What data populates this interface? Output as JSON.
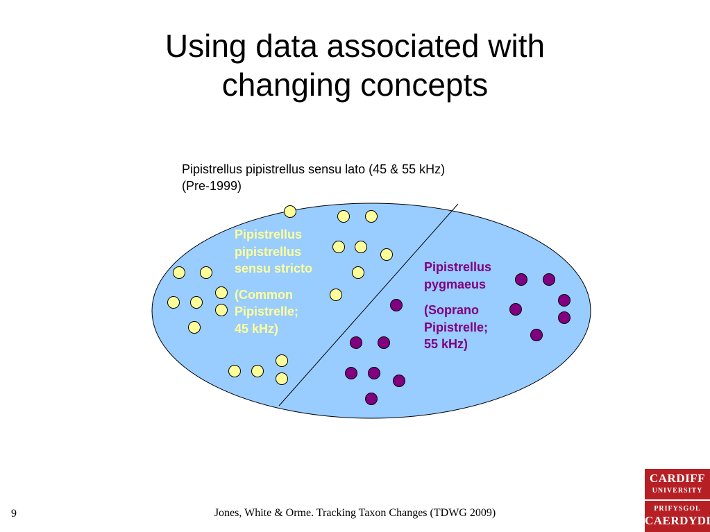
{
  "slide": {
    "title_line1": "Using data associated with",
    "title_line2": "changing concepts",
    "slide_number": "9",
    "footer": "Jones, White & Orme. Tracking Taxon Changes (TDWG 2009)"
  },
  "diagram": {
    "outer_label_line1": "Pipistrellus pipistrellus sensu lato (45 & 55 kHz)",
    "outer_label_line2": "(Pre-1999)",
    "common_group": {
      "name_line1": "Pipistrellus",
      "name_line2": "pipistrellus",
      "name_line3": "sensu stricto",
      "common_line1": "(Common",
      "common_line2": "Pipistrelle;",
      "common_line3": "45 kHz)",
      "color": "#ffff99",
      "dot_count": 22
    },
    "soprano_group": {
      "name_line1": "Pipistrellus",
      "name_line2": "pygmaeus",
      "common_line1": "(Soprano",
      "common_line2": "Pipistrelle;",
      "common_line3": "55 kHz)",
      "color": "#800080",
      "dot_count": 15
    },
    "ellipse_fill": "#99ccff"
  },
  "logo": {
    "top_line1": "CARDIFF",
    "top_line2": "UNIVERSITY",
    "bottom_line1": "PRIFYSGOL",
    "bottom_line2": "CAERDYDD",
    "color": "#b61f24"
  }
}
